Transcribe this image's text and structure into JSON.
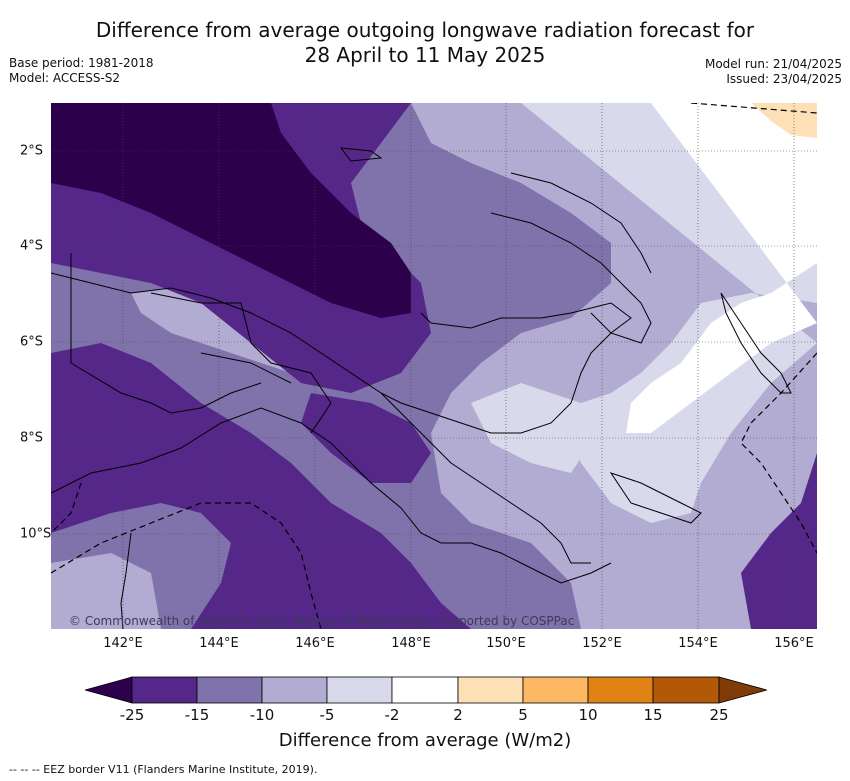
{
  "title_line1": "Difference from average outgoing longwave radiation forecast for",
  "title_line2": "28 April to 11 May 2025",
  "base_period": "Base period: 1981-2018",
  "model": "Model: ACCESS-S2",
  "model_run": "Model run: 21/04/2025",
  "issued": "Issued: 23/04/2025",
  "copyright": "© Commonwealth of Australia 2025, Bureau of Meteorology, supported by COSPPac",
  "x_ticks": [
    "142°E",
    "144°E",
    "146°E",
    "148°E",
    "150°E",
    "152°E",
    "154°E",
    "156°E"
  ],
  "y_ticks": [
    "2°S",
    "4°S",
    "6°S",
    "8°S",
    "10°S"
  ],
  "colorbar": {
    "title": "Difference from average (W/m2)",
    "ticks": [
      "-25",
      "-15",
      "-10",
      "-5",
      "-2",
      "2",
      "5",
      "10",
      "15",
      "25"
    ],
    "colors": [
      "#2d004b",
      "#542788",
      "#8073ac",
      "#b2abd2",
      "#d8daeb",
      "#ffffff",
      "#fee0b6",
      "#fdb863",
      "#e08214",
      "#b35806",
      "#7f3b08"
    ]
  },
  "eez_legend": "-- -- -- EEZ border V11 (Flanders Marine Institute, 2019)."
}
